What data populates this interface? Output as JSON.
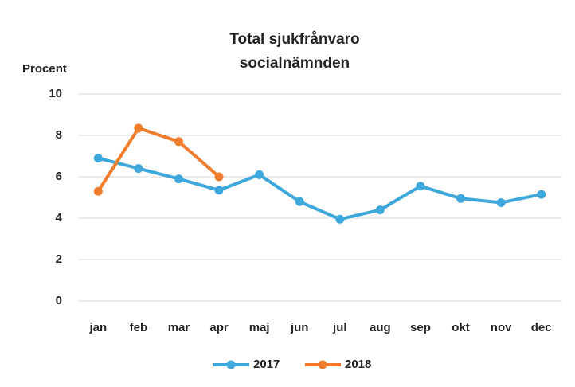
{
  "chart_data": {
    "type": "line",
    "title": [
      "Total sjukfrånvaro",
      "socialnämnden"
    ],
    "y_label": "Procent",
    "categories": [
      "jan",
      "feb",
      "mar",
      "apr",
      "maj",
      "jun",
      "jul",
      "aug",
      "sep",
      "okt",
      "nov",
      "dec"
    ],
    "series": [
      {
        "name": "2017",
        "color": "#3ea8dc",
        "values": [
          6.9,
          6.4,
          5.9,
          5.35,
          6.1,
          4.8,
          3.95,
          4.4,
          5.55,
          4.95,
          4.75,
          5.15
        ]
      },
      {
        "name": "2018",
        "color": "#f07d2e",
        "values": [
          5.3,
          8.35,
          7.7,
          6.0,
          null,
          null,
          null,
          null,
          null,
          null,
          null,
          null
        ]
      }
    ],
    "ylim": [
      0,
      10
    ],
    "yticks": [
      0,
      2,
      4,
      6,
      8,
      10
    ],
    "grid": true,
    "legend": "bottom"
  }
}
